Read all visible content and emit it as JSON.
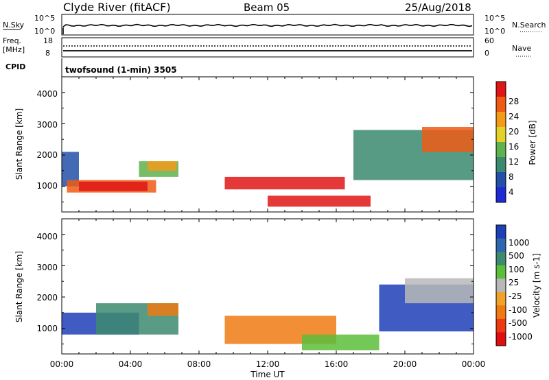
{
  "header": {
    "title": "Clyde River (fitACF)",
    "beam": "Beam 05",
    "date": "25/Aug/2018"
  },
  "panel_nsky": {
    "left_label": "N.Sky",
    "left_ticks": [
      "10^5",
      "10^0"
    ],
    "right_ticks": [
      "10^5",
      "10^0"
    ],
    "right_label": "N.Search"
  },
  "panel_freq": {
    "left_label_1": "Freq.",
    "left_label_2": "[MHz]",
    "left_ticks": [
      "18",
      "8"
    ],
    "right_ticks": [
      "60",
      "0"
    ],
    "right_label": "Nave"
  },
  "panel_cpid": {
    "left_label": "CPID",
    "text": "twofsound (1-min) 3505"
  },
  "axes": {
    "ylabel": "Slant Range [km]",
    "yticks": [
      "1000",
      "2000",
      "3000",
      "4000"
    ],
    "xticks": [
      "00:00",
      "04:00",
      "08:00",
      "12:00",
      "16:00",
      "20:00",
      "00:00"
    ],
    "xlabel": "Time UT"
  },
  "power_colorbar": {
    "label": "Power [dB]",
    "ticks": [
      "4",
      "8",
      "12",
      "16",
      "20",
      "24",
      "28"
    ],
    "colors": [
      "#1f2ad6",
      "#2450a8",
      "#3b8a6e",
      "#5fb24e",
      "#e4d22b",
      "#f39a1a",
      "#ef5a14",
      "#e01616"
    ]
  },
  "velocity_colorbar": {
    "label": "Velocity [m s-1]",
    "ticks": [
      "1000",
      "500",
      "100",
      "25",
      "-25",
      "-100",
      "-500",
      "-1000"
    ],
    "colors": [
      "#1e3fb8",
      "#2f66b0",
      "#3d8a70",
      "#5cbe3a",
      "#b8b8b8",
      "#f0a22a",
      "#f07a12",
      "#ee3a10",
      "#e00e0e"
    ]
  },
  "chart_data": [
    {
      "type": "heatmap",
      "title": "Power [dB]",
      "xlabel": "Time UT",
      "ylabel": "Slant Range [km]",
      "xlim": [
        0,
        24
      ],
      "ylim": [
        180,
        4500
      ],
      "cells": [
        [
          0.0,
          1.0,
          1000,
          2100,
          "#2450a8"
        ],
        [
          0.3,
          5.5,
          800,
          1200,
          "#ef5a14"
        ],
        [
          1.0,
          5.0,
          850,
          1150,
          "#e01616"
        ],
        [
          4.5,
          6.8,
          1300,
          1800,
          "#5fb24e"
        ],
        [
          5.0,
          6.7,
          1500,
          1800,
          "#f39a1a"
        ],
        [
          9.5,
          16.5,
          900,
          1300,
          "#e01616"
        ],
        [
          12.0,
          18.0,
          350,
          700,
          "#e01616"
        ],
        [
          17.0,
          24.0,
          1200,
          2800,
          "#3b8a6e"
        ],
        [
          21.0,
          24.0,
          2100,
          2900,
          "#ef5a14"
        ]
      ]
    },
    {
      "type": "heatmap",
      "title": "Velocity [m s-1]",
      "xlabel": "Time UT",
      "ylabel": "Slant Range [km]",
      "xlim": [
        0,
        24
      ],
      "ylim": [
        180,
        4500
      ],
      "cells": [
        [
          0.0,
          4.5,
          800,
          1500,
          "#1e3fb8"
        ],
        [
          2.0,
          6.8,
          800,
          1800,
          "#3d8a70"
        ],
        [
          5.0,
          6.8,
          1400,
          1800,
          "#f07a12"
        ],
        [
          9.5,
          16.0,
          500,
          1400,
          "#f07a12"
        ],
        [
          14.0,
          18.5,
          300,
          800,
          "#5cbe3a"
        ],
        [
          18.5,
          24.0,
          900,
          2400,
          "#1e3fb8"
        ],
        [
          20.0,
          24.0,
          1800,
          2600,
          "#b8b8b8"
        ]
      ]
    }
  ]
}
